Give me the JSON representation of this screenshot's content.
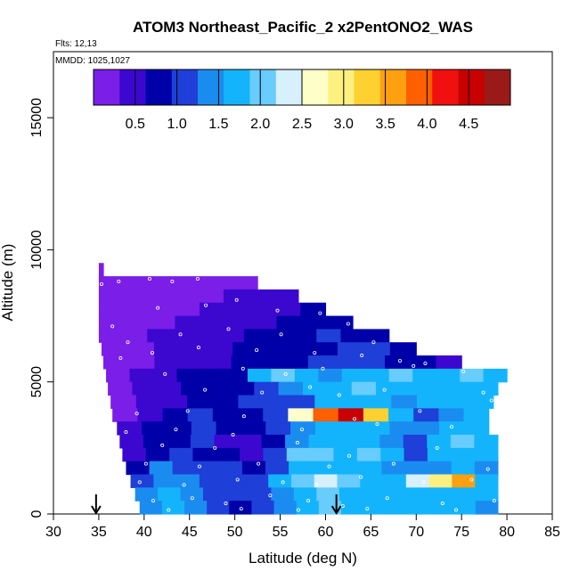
{
  "chart_data": {
    "type": "heatmap",
    "title": "ATOM3 Northeast_Pacific_2 x2PentONO2_WAS",
    "flights_label": "Flts: 12,13",
    "dates_label": "MMDD: 1025,1027",
    "xlabel": "Latitude (deg N)",
    "ylabel": "Altitude (m)",
    "xlim": [
      30,
      85
    ],
    "ylim": [
      0,
      17500
    ],
    "x_ticks": [
      "30",
      "35",
      "40",
      "45",
      "50",
      "55",
      "60",
      "65",
      "70",
      "75",
      "80",
      "85"
    ],
    "y_ticks": [
      "0",
      "5000",
      "10000",
      "15000"
    ],
    "colorbar": {
      "range": [
        0,
        5
      ],
      "tick_labels": [
        "0.5",
        "1.0",
        "1.5",
        "2.0",
        "2.5",
        "3.0",
        "3.5",
        "4.0",
        "4.5"
      ],
      "colors": [
        "#7a1ee8",
        "#3c08d0",
        "#0000a8",
        "#1e3fd8",
        "#1a8cf0",
        "#14b4fc",
        "#68ccfc",
        "#d6f0fc",
        "#fefec8",
        "#fef080",
        "#fed030",
        "#fea010",
        "#fe6000",
        "#f01010",
        "#c80000",
        "#9a1a1a"
      ]
    },
    "markers": [
      {
        "name": "arrow-1",
        "latitude": 34.7,
        "altitude": 0
      },
      {
        "name": "arrow-2",
        "latitude": 61.2,
        "altitude": 0
      }
    ],
    "layers": [
      {
        "altitude": [
          9000,
          9500
        ],
        "lat_range": [
          35,
          35.5
        ],
        "values": [
          0.2
        ]
      },
      {
        "altitude": [
          8500,
          9000
        ],
        "lat_range": [
          35,
          52.5
        ],
        "values": [
          0.2,
          0.2,
          0.25,
          0.25,
          0.3,
          0.3,
          0.3
        ]
      },
      {
        "altitude": [
          8000,
          8500
        ],
        "lat_range": [
          35,
          57
        ],
        "values": [
          0.2,
          0.2,
          0.3,
          0.3,
          0.3,
          0.35,
          0.4,
          0.5
        ]
      },
      {
        "altitude": [
          7500,
          8000
        ],
        "lat_range": [
          35,
          60
        ],
        "values": [
          0.2,
          0.25,
          0.3,
          0.3,
          0.35,
          0.4,
          0.5,
          0.6,
          0.8
        ]
      },
      {
        "altitude": [
          7000,
          7500
        ],
        "lat_range": [
          35,
          63
        ],
        "values": [
          0.2,
          0.25,
          0.3,
          0.35,
          0.4,
          0.5,
          0.6,
          0.7,
          0.85,
          0.9
        ]
      },
      {
        "altitude": [
          6500,
          7000
        ],
        "lat_range": [
          35,
          67
        ],
        "values": [
          0.25,
          0.3,
          0.35,
          0.35,
          0.45,
          0.6,
          0.8,
          0.85,
          0.9,
          0.95,
          0.9,
          0.8
        ]
      },
      {
        "altitude": [
          6000,
          6500
        ],
        "lat_range": [
          35.3,
          70
        ],
        "values": [
          0.25,
          0.3,
          0.35,
          0.4,
          0.5,
          0.7,
          0.8,
          0.9,
          0.9,
          0.95,
          1.0,
          0.9
        ]
      },
      {
        "altitude": [
          5500,
          6000
        ],
        "lat_range": [
          35.5,
          75
        ],
        "values": [
          0.25,
          0.3,
          0.35,
          0.4,
          0.5,
          0.7,
          0.85,
          0.9,
          0.95,
          1.05,
          1.0,
          0.9,
          0.8,
          0.6
        ]
      },
      {
        "altitude": [
          5000,
          5500
        ],
        "lat_range": [
          35.8,
          80
        ],
        "values": [
          0.3,
          0.35,
          0.4,
          0.7,
          0.85,
          0.9,
          1.6,
          1.9,
          1.8,
          1.5,
          1.7,
          1.8,
          1.9,
          1.6,
          1.8,
          1.9,
          1.8
        ]
      },
      {
        "altitude": [
          4500,
          5000
        ],
        "lat_range": [
          36,
          79
        ],
        "values": [
          0.3,
          0.35,
          0.5,
          0.7,
          0.8,
          0.9,
          1.0,
          1.4,
          1.6,
          1.8,
          1.9,
          1.7,
          1.6,
          1.8,
          1.6,
          1.7
        ]
      },
      {
        "altitude": [
          4000,
          4500
        ],
        "lat_range": [
          36.3,
          78.5
        ],
        "values": [
          0.3,
          0.4,
          0.55,
          0.75,
          0.9,
          0.95,
          1.0,
          1.2,
          1.6,
          1.8,
          1.7,
          1.5,
          1.6,
          1.7,
          1.6
        ]
      },
      {
        "altitude": [
          3500,
          4000
        ],
        "lat_range": [
          36.5,
          78
        ],
        "values": [
          0.3,
          0.6,
          0.9,
          1.0,
          0.9,
          0.85,
          1.1,
          2.6,
          4.0,
          4.6,
          3.2,
          1.6,
          1.0,
          1.3,
          1.7
        ]
      },
      {
        "altitude": [
          3000,
          3500
        ],
        "lat_range": [
          37,
          78
        ],
        "values": [
          0.35,
          0.8,
          0.9,
          1.0,
          0.9,
          0.85,
          1.0,
          1.3,
          1.6,
          1.7,
          1.8,
          1.5,
          1.3,
          1.6,
          1.7
        ]
      },
      {
        "altitude": [
          2500,
          3000
        ],
        "lat_range": [
          37.3,
          79
        ],
        "values": [
          0.4,
          0.8,
          0.9,
          0.95,
          0.5,
          0.4,
          0.9,
          1.4,
          1.7,
          1.8,
          1.7,
          1.3,
          1.1,
          1.8,
          1.9,
          1.7
        ]
      },
      {
        "altitude": [
          2000,
          2500
        ],
        "lat_range": [
          37.6,
          79
        ],
        "values": [
          0.5,
          0.9,
          1.0,
          0.9,
          0.7,
          0.6,
          1.2,
          1.9,
          2.1,
          1.7,
          1.9,
          1.6,
          1.0,
          1.7,
          1.8,
          1.6
        ]
      },
      {
        "altitude": [
          1500,
          2000
        ],
        "lat_range": [
          38,
          79
        ],
        "values": [
          0.8,
          1.4,
          1.2,
          1.0,
          0.95,
          0.9,
          1.0,
          1.6,
          1.8,
          1.7,
          1.6,
          1.5,
          1.3,
          1.5,
          1.6,
          1.5
        ]
      },
      {
        "altitude": [
          1000,
          1500
        ],
        "lat_range": [
          38.5,
          79
        ],
        "values": [
          1.2,
          1.5,
          1.3,
          1.1,
          0.95,
          1.0,
          1.6,
          1.9,
          2.4,
          1.9,
          1.8,
          1.7,
          2.2,
          3.0,
          3.6,
          1.8
        ]
      },
      {
        "altitude": [
          500,
          1000
        ],
        "lat_range": [
          39,
          79
        ],
        "values": [
          1.4,
          1.6,
          1.4,
          1.2,
          1.0,
          0.95,
          1.5,
          1.8,
          1.9,
          1.8,
          1.7,
          1.6,
          1.7,
          1.8,
          1.7,
          1.6
        ]
      },
      {
        "altitude": [
          0,
          500
        ],
        "lat_range": [
          39.5,
          79
        ],
        "values": [
          1.5,
          1.6,
          1.4,
          1.2,
          0.9,
          0.95,
          1.4,
          1.8,
          1.9,
          1.7,
          1.7,
          1.6,
          1.7,
          1.8,
          1.7,
          1.5
        ]
      }
    ],
    "samples": [
      {
        "latitude": 35.3,
        "altitude": 8700
      },
      {
        "latitude": 37.2,
        "altitude": 8800
      },
      {
        "latitude": 40.6,
        "altitude": 8900
      },
      {
        "latitude": 43.1,
        "altitude": 8800
      },
      {
        "latitude": 45.9,
        "altitude": 8900
      },
      {
        "latitude": 41.5,
        "altitude": 7800
      },
      {
        "latitude": 46.8,
        "altitude": 7900
      },
      {
        "latitude": 50.2,
        "altitude": 8100
      },
      {
        "latitude": 54.7,
        "altitude": 7700
      },
      {
        "latitude": 36.5,
        "altitude": 7100
      },
      {
        "latitude": 38.2,
        "altitude": 6500
      },
      {
        "latitude": 44.0,
        "altitude": 6800
      },
      {
        "latitude": 49.3,
        "altitude": 7000
      },
      {
        "latitude": 59.4,
        "altitude": 7600
      },
      {
        "latitude": 62.5,
        "altitude": 7200
      },
      {
        "latitude": 55.1,
        "altitude": 6800
      },
      {
        "latitude": 65.3,
        "altitude": 6500
      },
      {
        "latitude": 37.4,
        "altitude": 5900
      },
      {
        "latitude": 40.9,
        "altitude": 6100
      },
      {
        "latitude": 46.0,
        "altitude": 6300
      },
      {
        "latitude": 52.4,
        "altitude": 6200
      },
      {
        "latitude": 58.8,
        "altitude": 6100
      },
      {
        "latitude": 64.0,
        "altitude": 6000
      },
      {
        "latitude": 68.2,
        "altitude": 5800
      },
      {
        "latitude": 71.0,
        "altitude": 5700
      },
      {
        "latitude": 79.2,
        "altitude": 5800
      },
      {
        "latitude": 42.3,
        "altitude": 5300
      },
      {
        "latitude": 50.9,
        "altitude": 5500
      },
      {
        "latitude": 55.6,
        "altitude": 5300
      },
      {
        "latitude": 59.7,
        "altitude": 5500
      },
      {
        "latitude": 69.7,
        "altitude": 5600
      },
      {
        "latitude": 75.2,
        "altitude": 5400
      },
      {
        "latitude": 46.7,
        "altitude": 4700
      },
      {
        "latitude": 53.0,
        "altitude": 4600
      },
      {
        "latitude": 58.3,
        "altitude": 4800
      },
      {
        "latitude": 61.5,
        "altitude": 4500
      },
      {
        "latitude": 66.5,
        "altitude": 4700
      },
      {
        "latitude": 77.4,
        "altitude": 4600
      },
      {
        "latitude": 78.3,
        "altitude": 4300
      },
      {
        "latitude": 39.2,
        "altitude": 3800
      },
      {
        "latitude": 44.8,
        "altitude": 3900
      },
      {
        "latitude": 51.0,
        "altitude": 3700
      },
      {
        "latitude": 56.6,
        "altitude": 3800
      },
      {
        "latitude": 63.2,
        "altitude": 3600
      },
      {
        "latitude": 70.4,
        "altitude": 3900
      },
      {
        "latitude": 38.0,
        "altitude": 3100
      },
      {
        "latitude": 43.5,
        "altitude": 3200
      },
      {
        "latitude": 49.8,
        "altitude": 3000
      },
      {
        "latitude": 57.4,
        "altitude": 3200
      },
      {
        "latitude": 65.7,
        "altitude": 3400
      },
      {
        "latitude": 73.9,
        "altitude": 3300
      },
      {
        "latitude": 37.1,
        "altitude": 2400
      },
      {
        "latitude": 42.0,
        "altitude": 2600
      },
      {
        "latitude": 47.8,
        "altitude": 2500
      },
      {
        "latitude": 56.9,
        "altitude": 2700
      },
      {
        "latitude": 62.6,
        "altitude": 2200
      },
      {
        "latitude": 72.3,
        "altitude": 2500
      },
      {
        "latitude": 40.2,
        "altitude": 1900
      },
      {
        "latitude": 46.1,
        "altitude": 1800
      },
      {
        "latitude": 52.6,
        "altitude": 1900
      },
      {
        "latitude": 60.4,
        "altitude": 1800
      },
      {
        "latitude": 67.5,
        "altitude": 1900
      },
      {
        "latitude": 77.9,
        "altitude": 1700
      },
      {
        "latitude": 39.5,
        "altitude": 1200
      },
      {
        "latitude": 44.4,
        "altitude": 1100
      },
      {
        "latitude": 50.3,
        "altitude": 1300
      },
      {
        "latitude": 55.3,
        "altitude": 1200
      },
      {
        "latitude": 59.0,
        "altitude": 1100
      },
      {
        "latitude": 63.9,
        "altitude": 1400
      },
      {
        "latitude": 70.8,
        "altitude": 1200
      },
      {
        "latitude": 76.1,
        "altitude": 1300
      },
      {
        "latitude": 41.0,
        "altitude": 500
      },
      {
        "latitude": 45.3,
        "altitude": 600
      },
      {
        "latitude": 49.0,
        "altitude": 400
      },
      {
        "latitude": 53.9,
        "altitude": 700
      },
      {
        "latitude": 58.1,
        "altitude": 500
      },
      {
        "latitude": 61.9,
        "altitude": 300
      },
      {
        "latitude": 66.8,
        "altitude": 600
      },
      {
        "latitude": 72.9,
        "altitude": 400
      },
      {
        "latitude": 78.6,
        "altitude": 500
      },
      {
        "latitude": 42.7,
        "altitude": 150
      },
      {
        "latitude": 50.7,
        "altitude": 200
      },
      {
        "latitude": 57.0,
        "altitude": 150
      },
      {
        "latitude": 64.6,
        "altitude": 200
      },
      {
        "latitude": 74.4,
        "altitude": 150
      }
    ]
  }
}
